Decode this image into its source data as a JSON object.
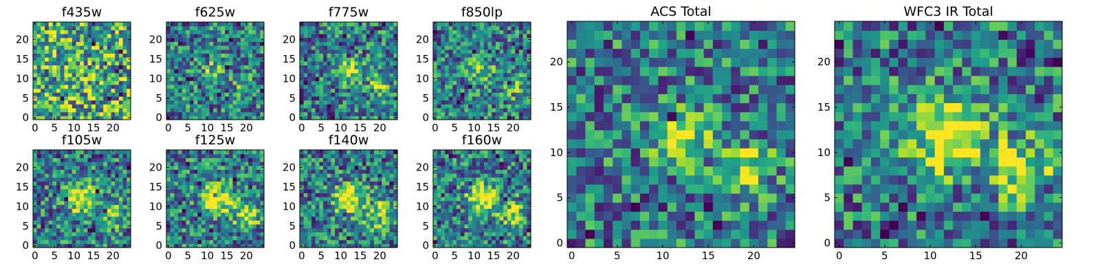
{
  "chart_data": [
    {
      "type": "heatmap",
      "title": "f435w",
      "grid": [
        25,
        25
      ],
      "xticks": [
        0,
        5,
        10,
        15,
        20
      ],
      "yticks": [
        0,
        5,
        10,
        15,
        20
      ],
      "xlim": [
        0,
        25
      ],
      "ylim": [
        0,
        25
      ],
      "colormap": "viridis",
      "sources": []
    },
    {
      "type": "heatmap",
      "title": "f625w",
      "grid": [
        25,
        25
      ],
      "xticks": [
        0,
        5,
        10,
        15,
        20
      ],
      "yticks": [
        0,
        5,
        10,
        15,
        20
      ],
      "xlim": [
        0,
        25
      ],
      "ylim": [
        0,
        25
      ],
      "colormap": "viridis",
      "sources": [
        {
          "x": 12,
          "y": 12,
          "amp": 0.35,
          "sigma": 2.2
        },
        {
          "x": 20,
          "y": 8,
          "amp": 0.25,
          "sigma": 2.0
        }
      ]
    },
    {
      "type": "heatmap",
      "title": "f775w",
      "grid": [
        25,
        25
      ],
      "xticks": [
        0,
        5,
        10,
        15,
        20
      ],
      "yticks": [
        0,
        5,
        10,
        15,
        20
      ],
      "xlim": [
        0,
        25
      ],
      "ylim": [
        0,
        25
      ],
      "colormap": "viridis",
      "sources": [
        {
          "x": 12,
          "y": 12,
          "amp": 0.5,
          "sigma": 2.2
        },
        {
          "x": 20,
          "y": 8,
          "amp": 0.35,
          "sigma": 2.0
        }
      ]
    },
    {
      "type": "heatmap",
      "title": "f850lp",
      "grid": [
        25,
        25
      ],
      "xticks": [
        0,
        5,
        10,
        15,
        20
      ],
      "yticks": [
        0,
        5,
        10,
        15,
        20
      ],
      "xlim": [
        0,
        25
      ],
      "ylim": [
        0,
        25
      ],
      "colormap": "viridis",
      "sources": [
        {
          "x": 12,
          "y": 12,
          "amp": 0.4,
          "sigma": 2.2
        },
        {
          "x": 20,
          "y": 8,
          "amp": 0.3,
          "sigma": 2.0
        }
      ]
    },
    {
      "type": "heatmap",
      "title": "f105w",
      "grid": [
        25,
        25
      ],
      "xticks": [
        0,
        5,
        10,
        15,
        20
      ],
      "yticks": [
        0,
        5,
        10,
        15,
        20
      ],
      "xlim": [
        0,
        25
      ],
      "ylim": [
        0,
        25
      ],
      "colormap": "viridis",
      "sources": [
        {
          "x": 12,
          "y": 12,
          "amp": 0.65,
          "sigma": 2.6
        },
        {
          "x": 20,
          "y": 8,
          "amp": 0.35,
          "sigma": 2.4
        }
      ]
    },
    {
      "type": "heatmap",
      "title": "f125w",
      "grid": [
        25,
        25
      ],
      "xticks": [
        0,
        5,
        10,
        15,
        20
      ],
      "yticks": [
        0,
        5,
        10,
        15,
        20
      ],
      "xlim": [
        0,
        25
      ],
      "ylim": [
        0,
        25
      ],
      "colormap": "viridis",
      "sources": [
        {
          "x": 12,
          "y": 12,
          "amp": 0.7,
          "sigma": 2.6
        },
        {
          "x": 20,
          "y": 8,
          "amp": 0.45,
          "sigma": 2.4
        }
      ]
    },
    {
      "type": "heatmap",
      "title": "f140w",
      "grid": [
        25,
        25
      ],
      "xticks": [
        0,
        5,
        10,
        15,
        20
      ],
      "yticks": [
        0,
        5,
        10,
        15,
        20
      ],
      "xlim": [
        0,
        25
      ],
      "ylim": [
        0,
        25
      ],
      "colormap": "viridis",
      "sources": [
        {
          "x": 12,
          "y": 12,
          "amp": 0.65,
          "sigma": 2.6
        },
        {
          "x": 20,
          "y": 8,
          "amp": 0.45,
          "sigma": 2.4
        }
      ]
    },
    {
      "type": "heatmap",
      "title": "f160w",
      "grid": [
        25,
        25
      ],
      "xticks": [
        0,
        5,
        10,
        15,
        20
      ],
      "yticks": [
        0,
        5,
        10,
        15,
        20
      ],
      "xlim": [
        0,
        25
      ],
      "ylim": [
        0,
        25
      ],
      "colormap": "viridis",
      "sources": [
        {
          "x": 12,
          "y": 12,
          "amp": 0.7,
          "sigma": 2.6
        },
        {
          "x": 20,
          "y": 8,
          "amp": 0.45,
          "sigma": 2.4
        }
      ]
    },
    {
      "type": "heatmap",
      "title": "ACS Total",
      "grid": [
        25,
        25
      ],
      "xticks": [
        0,
        5,
        10,
        15,
        20
      ],
      "yticks": [
        0,
        5,
        10,
        15,
        20
      ],
      "xlim": [
        0,
        25
      ],
      "ylim": [
        0,
        25
      ],
      "colormap": "viridis",
      "sources": [
        {
          "x": 12,
          "y": 12,
          "amp": 0.6,
          "sigma": 2.0
        },
        {
          "x": 19,
          "y": 8,
          "amp": 0.45,
          "sigma": 2.0
        }
      ]
    },
    {
      "type": "heatmap",
      "title": "WFC3 IR Total",
      "grid": [
        25,
        25
      ],
      "xticks": [
        0,
        5,
        10,
        15,
        20
      ],
      "yticks": [
        0,
        5,
        10,
        15,
        20
      ],
      "xlim": [
        0,
        25
      ],
      "ylim": [
        0,
        25
      ],
      "colormap": "viridis",
      "sources": [
        {
          "x": 12,
          "y": 12,
          "amp": 0.75,
          "sigma": 2.7
        },
        {
          "x": 20,
          "y": 8,
          "amp": 0.5,
          "sigma": 2.5
        }
      ]
    }
  ]
}
